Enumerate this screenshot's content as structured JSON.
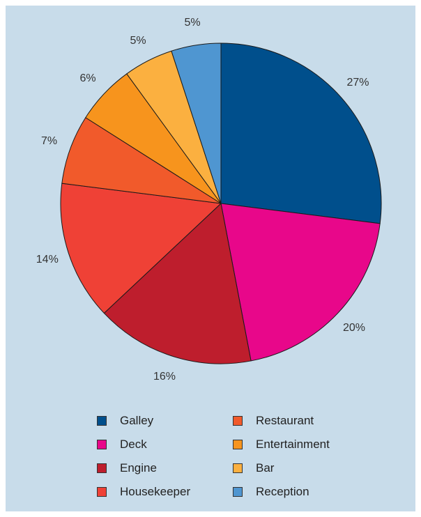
{
  "chart_data": {
    "type": "pie",
    "title": "",
    "slices": [
      {
        "name": "Galley",
        "value": 27,
        "label": "27%",
        "color": "#004f8c"
      },
      {
        "name": "Deck",
        "value": 20,
        "label": "20%",
        "color": "#e8078a"
      },
      {
        "name": "Engine",
        "value": 16,
        "label": "16%",
        "color": "#be1e2d"
      },
      {
        "name": "Housekeeper",
        "value": 14,
        "label": "14%",
        "color": "#ef4136"
      },
      {
        "name": "Restaurant",
        "value": 7,
        "label": "7%",
        "color": "#f15a2b"
      },
      {
        "name": "Entertainment",
        "value": 6,
        "label": "6%",
        "color": "#f7941d"
      },
      {
        "name": "Bar",
        "value": 5,
        "label": "5%",
        "color": "#fbb040"
      },
      {
        "name": "Reception",
        "value": 5,
        "label": "5%",
        "color": "#4f96d1"
      }
    ],
    "legend_placement": "bottom, two columns",
    "start_angle": "12 o'clock, clockwise"
  }
}
